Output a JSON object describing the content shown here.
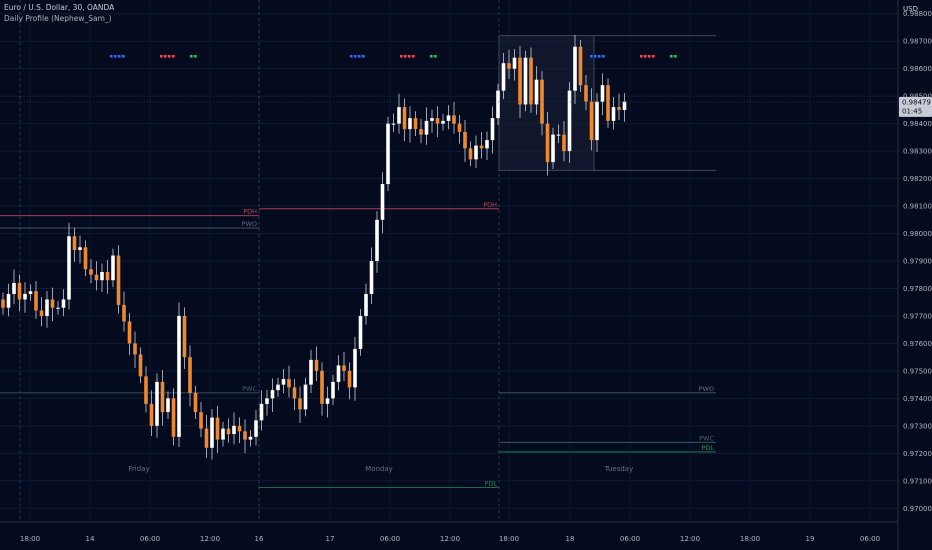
{
  "header": {
    "title": "Euro / U.S. Dollar, 30, OANDA",
    "study": "Daily Profile (Nephew_Sam_)",
    "price_unit": "USD"
  },
  "colors": {
    "background": "#050b1e",
    "up": "#ffffff",
    "down": "#f0882e",
    "wick": "#c9ccd6",
    "pdh": "#c2465a",
    "pwo": "#5f6a82",
    "pwc": "#3c6474",
    "pdl": "#1f8f5c",
    "session_box": "#4a5266",
    "marker_blue": "#2f6df2",
    "marker_red": "#ef4b50",
    "marker_green": "#22c266",
    "price_tag": "#c8ccd6"
  },
  "chart_data": {
    "type": "candlestick",
    "title": "Euro / U.S. Dollar, 30, OANDA",
    "ylim": [
      0.9695,
      0.9885
    ],
    "y_ticks": [
      "0.98800",
      "0.98700",
      "0.98600",
      "0.98500",
      "0.98400",
      "0.98300",
      "0.98200",
      "0.98100",
      "0.98000",
      "0.97900",
      "0.97800",
      "0.97700",
      "0.97600",
      "0.97500",
      "0.97400",
      "0.97300",
      "0.97200",
      "0.97100",
      "0.97000"
    ],
    "x_ticks": [
      "18:00",
      "14",
      "06:00",
      "12:00",
      "16",
      "17",
      "06:00",
      "12:00",
      "18:00",
      "18",
      "06:00",
      "12:00",
      "18:00",
      "19",
      "06:00"
    ],
    "day_labels": [
      "Friday",
      "Monday",
      "Tuesday"
    ],
    "current_price": "0.98479",
    "countdown": "01:45",
    "levels": [
      {
        "label": "PDH",
        "value": 0.9809,
        "series": "pdh",
        "day": 1
      },
      {
        "label": "PDH",
        "value": 0.98065,
        "series": "pdh",
        "day": 0
      },
      {
        "label": "PWO",
        "value": 0.9802,
        "series": "pwo",
        "day": 0
      },
      {
        "label": "PWC",
        "value": 0.9742,
        "series": "pwc",
        "day": 0
      },
      {
        "label": "PWO",
        "value": 0.9742,
        "series": "pwo",
        "day": 2
      },
      {
        "label": "PWC",
        "value": 0.9724,
        "series": "pwc",
        "day": 2
      },
      {
        "label": "PDL",
        "value": 0.97205,
        "series": "pdl",
        "day": 2
      },
      {
        "label": "PDL",
        "value": 0.97075,
        "series": "pdl",
        "day": 1
      }
    ],
    "session_box": {
      "high": 0.9872,
      "low": 0.9823
    },
    "candles": {
      "start": 0.9776,
      "closes": [
        0.9773,
        0.9778,
        0.9782,
        0.9776,
        0.9778,
        0.9779,
        0.9772,
        0.977,
        0.9776,
        0.9773,
        0.9773,
        0.9776,
        0.9799,
        0.9794,
        0.9795,
        0.9787,
        0.9785,
        0.9783,
        0.9786,
        0.9783,
        0.9792,
        0.9774,
        0.9768,
        0.976,
        0.9756,
        0.9748,
        0.9738,
        0.973,
        0.9746,
        0.9735,
        0.974,
        0.9726,
        0.977,
        0.9755,
        0.9742,
        0.9735,
        0.9729,
        0.9722,
        0.9733,
        0.9725,
        0.9729,
        0.9727,
        0.973,
        0.9728,
        0.9725,
        0.9726,
        0.9732,
        0.9738,
        0.974,
        0.9743,
        0.9745,
        0.9747,
        0.9744,
        0.974,
        0.9736,
        0.9745,
        0.9754,
        0.975,
        0.9738,
        0.974,
        0.9746,
        0.9752,
        0.975,
        0.9744,
        0.9758,
        0.977,
        0.9778,
        0.979,
        0.9805,
        0.9818,
        0.984,
        0.984,
        0.9846,
        0.9838,
        0.9842,
        0.9838,
        0.9836,
        0.9841,
        0.9842,
        0.984,
        0.9841,
        0.9843,
        0.984,
        0.9837,
        0.9831,
        0.9827,
        0.9832,
        0.9831,
        0.9834,
        0.9842,
        0.9852,
        0.9862,
        0.986,
        0.9864,
        0.9847,
        0.9864,
        0.9847,
        0.9856,
        0.984,
        0.9826,
        0.9836,
        0.9836,
        0.983,
        0.9852,
        0.9868,
        0.9854,
        0.9848,
        0.9834,
        0.9848,
        0.9854,
        0.9841,
        0.9846,
        0.9845,
        0.9848
      ]
    }
  }
}
